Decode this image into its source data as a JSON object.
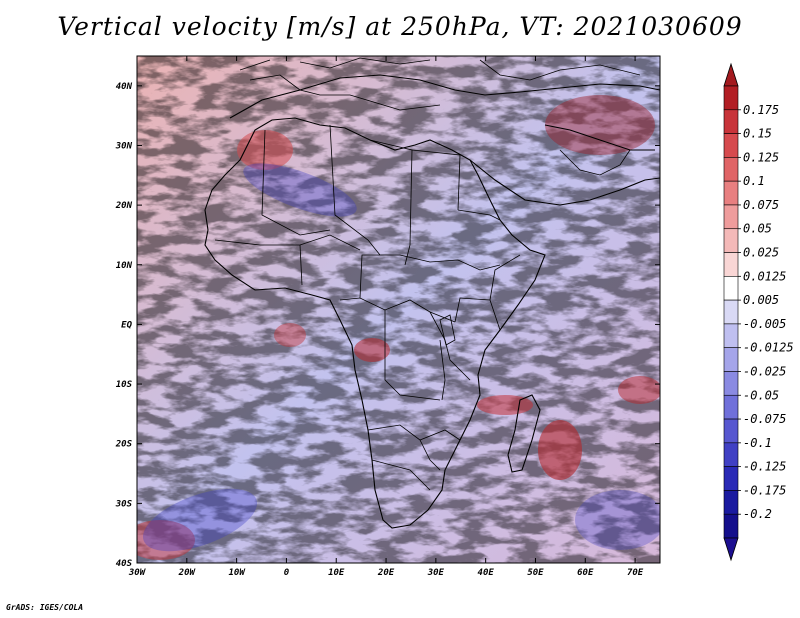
{
  "title": "Vertical velocity [m/s] at 250hPa, VT: 2021030609",
  "credit": "GrADS: IGES/COLA",
  "map": {
    "variable": "Vertical velocity",
    "units": "m/s",
    "level": "250hPa",
    "valid_time": "2021030609",
    "region": "Africa",
    "lon_range": [
      -30,
      75
    ],
    "lat_range": [
      -40,
      45
    ],
    "lat_ticks": [
      "40N",
      "30N",
      "20N",
      "10N",
      "EQ",
      "10S",
      "20S",
      "30S",
      "40S"
    ],
    "lon_ticks": [
      "30W",
      "20W",
      "10W",
      "0",
      "10E",
      "20E",
      "30E",
      "40E",
      "50E",
      "60E",
      "70E"
    ],
    "features": [
      "country borders",
      "coastlines",
      "vertical velocity shading"
    ]
  },
  "colorbar": {
    "labels": [
      "0.175",
      "0.15",
      "0.125",
      "0.1",
      "0.075",
      "0.05",
      "0.025",
      "0.0125",
      "0.005",
      "-0.005",
      "-0.0125",
      "-0.025",
      "-0.05",
      "-0.075",
      "-0.1",
      "-0.125",
      "-0.175",
      "-0.2"
    ],
    "colors": [
      "#b21e24",
      "#c8343a",
      "#d64a4e",
      "#e06466",
      "#e87f80",
      "#ef9c9c",
      "#f4b9b8",
      "#f9d6d5",
      "#ffffff",
      "#d9d9f5",
      "#bfbff0",
      "#a5a5ea",
      "#8a8ae2",
      "#7070da",
      "#5757d0",
      "#4040c4",
      "#2a2ab6",
      "#1a1aa0",
      "#140f8c"
    ],
    "top_arrow_color": "#a31a1f",
    "bottom_arrow_color": "#1c0f90"
  }
}
